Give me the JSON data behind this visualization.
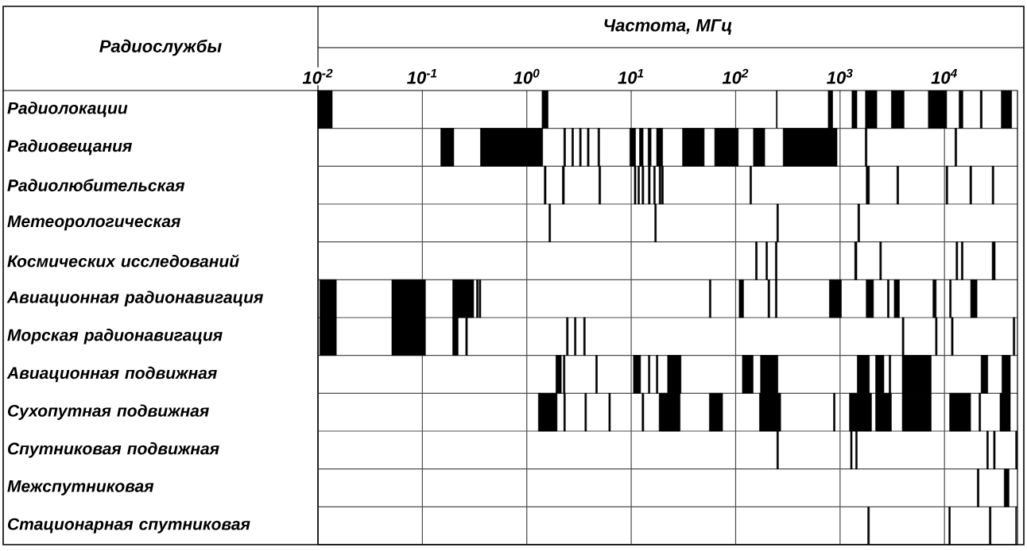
{
  "chart_data": {
    "type": "bar",
    "orientation": "horizontal",
    "log": "x",
    "xlabel": "Частота, МГц",
    "ylabel": "Радиослужбы",
    "color": "#000000",
    "grid": true,
    "categories": [
      "Радиолокации",
      "Радиовещания",
      "Радиолюбительская",
      "Метеорологическая",
      "Космических исследований",
      "Авиационная радионавигация",
      "Морская радионавигация",
      "Авиационная подвижная",
      "Сухопутная подвижная",
      "Спутниковая подвижная",
      "Межспутниковая",
      "Стационарная спутниковая"
    ],
    "xlim": [
      0.01,
      50000
    ],
    "xticks": [
      {
        "value": 0.01,
        "label": "10$^{-2}$"
      },
      {
        "value": 0.1,
        "label": "10$^{-1}$"
      },
      {
        "value": 1,
        "label": "10$^{0}$"
      },
      {
        "value": 10,
        "label": "10$^{1}$"
      },
      {
        "value": 100,
        "label": "10$^{2}$"
      },
      {
        "value": 1000,
        "label": "10$^{3}$"
      },
      {
        "value": 10000,
        "label": "10$^{4}$"
      }
    ],
    "series": [
      {
        "base": [
          0.01,
          0.15,
          1.47,
          1.63,
          155,
          0.0104,
          0.0104,
          1.9,
          1.29,
          248,
          20600,
          1840
        ],
        "values": [
          0.0037,
          0.05,
          0.06,
          0.06,
          6,
          0.0046,
          0.0046,
          0.24,
          0.66,
          9,
          800,
          70
        ]
      },
      {
        "base": [
          1.4,
          0.36,
          2.19,
          16.8,
          195,
          0.051,
          0.051,
          2.24,
          2.26,
          1260,
          37300,
          11000
        ],
        "values": [
          0.2,
          1.06,
          0.1,
          0.6,
          7,
          0.056,
          0.056,
          0.08,
          0.08,
          45,
          4200,
          400
        ]
      },
      {
        "base": [
          245,
          2.26,
          4.9,
          248,
          240,
          0.195,
          0.195,
          4.57,
          3.6,
          1410,
          null,
          26900
        ],
        "values": [
          5,
          0.09,
          0.2,
          9,
          9,
          0.115,
          0.025,
          0.17,
          0.13,
          50,
          null,
          1000
        ]
      },
      {
        "base": [
          770,
          2.7,
          10.7,
          1480,
          1380,
          0.33,
          0.26,
          10.5,
          6.1,
          25400,
          null,
          48000
        ],
        "values": [
          80,
          0.1,
          0.4,
          60,
          70,
          0.012,
          0.01,
          1.8,
          0.22,
          900,
          null,
          900
        ]
      },
      {
        "base": [
          1300,
          3.2,
          11.6,
          null,
          2400,
          0.35,
          2.4,
          14.6,
          12.7,
          29500,
          null,
          null
        ],
        "values": [
          150,
          0.12,
          0.4,
          null,
          90,
          0.013,
          0.09,
          0.5,
          0.5,
          1100,
          null,
          null
        ]
      },
      {
        "base": [
          1750,
          3.8,
          12.7,
          null,
          12900,
          56,
          2.86,
          17.4,
          18.5,
          48000,
          null,
          null
        ],
        "values": [
          500,
          0.15,
          0.5,
          null,
          500,
          2,
          0.1,
          0.6,
          10.9,
          1500,
          null,
          null
        ]
      },
      {
        "base": [
          3100,
          4.8,
          14.6,
          null,
          14500,
          108,
          3.5,
          22.3,
          56,
          null,
          null,
          null
        ],
        "values": [
          1000,
          0.18,
          0.6,
          null,
          550,
          11,
          0.13,
          7.7,
          19,
          null,
          null,
          null
        ]
      },
      {
        "base": [
          7000,
          9.7,
          16.4,
          null,
          28600,
          204,
          3940,
          116,
          169,
          null,
          null,
          null
        ],
        "values": [
          3500,
          1.3,
          0.6,
          null,
          2000,
          8,
          150,
          31,
          101,
          null,
          null,
          null
        ]
      },
      {
        "base": [
          13800,
          12,
          18.5,
          null,
          null,
          240,
          8200,
          173,
          865,
          null,
          null,
          null
        ],
        "values": [
          1200,
          1,
          0.7,
          null,
          null,
          9,
          300,
          81,
          30,
          null,
          null,
          null
        ]
      },
      {
        "base": [
          22000,
          14.5,
          19.5,
          null,
          null,
          790,
          11650,
          1460,
          1230,
          null,
          null,
          null
        ],
        "values": [
          1000,
          1,
          0.8,
          null,
          null,
          240,
          450,
          450,
          770,
          null,
          null,
          null
        ]
      },
      {
        "base": [
          35000,
          17.5,
          137,
          null,
          null,
          1780,
          45500,
          2190,
          2190,
          null,
          null,
          null
        ],
        "values": [
          9000,
          2.5,
          5,
          null,
          null,
          310,
          1700,
          440,
          910,
          null,
          null,
          null
        ]
      },
      {
        "base": [
          null,
          31,
          1780,
          null,
          null,
          2840,
          null,
          2950,
          3940,
          null,
          null,
          null
        ],
        "values": [
          null,
          19,
          130,
          null,
          null,
          110,
          null,
          110,
          3520,
          null,
          null,
          null
        ]
      },
      {
        "base": [
          null,
          63,
          3500,
          null,
          null,
          3300,
          null,
          3940,
          11200,
          null,
          null,
          null
        ],
        "values": [
          null,
          43,
          140,
          null,
          null,
          400,
          null,
          3520,
          6600,
          null,
          null,
          null
        ]
      },
      {
        "base": [
          null,
          148,
          10350,
          null,
          null,
          7750,
          null,
          22400,
          21400,
          null,
          null,
          null
        ],
        "values": [
          null,
          42,
          400,
          null,
          null,
          580,
          null,
          3600,
          800,
          null,
          null,
          null
        ]
      },
      {
        "base": [
          null,
          285,
          17500,
          null,
          null,
          11200,
          null,
          35500,
          34000,
          null,
          null,
          null
        ],
        "values": [
          null,
          650,
          700,
          null,
          null,
          400,
          null,
          7200,
          8700,
          null,
          null,
          null
        ]
      },
      {
        "base": [
          null,
          1740,
          28600,
          null,
          null,
          17800,
          null,
          null,
          null,
          null,
          null,
          null
        ],
        "values": [
          null,
          70,
          1100,
          null,
          null,
          2700,
          null,
          null,
          null,
          null,
          null,
          null
        ]
      },
      {
        "base": [
          null,
          12600,
          null,
          null,
          null,
          null,
          null,
          null,
          null,
          null,
          null,
          null
        ],
        "values": [
          null,
          500,
          null,
          null,
          null,
          null,
          null,
          null,
          null,
          null,
          null,
          null
        ]
      }
    ]
  }
}
